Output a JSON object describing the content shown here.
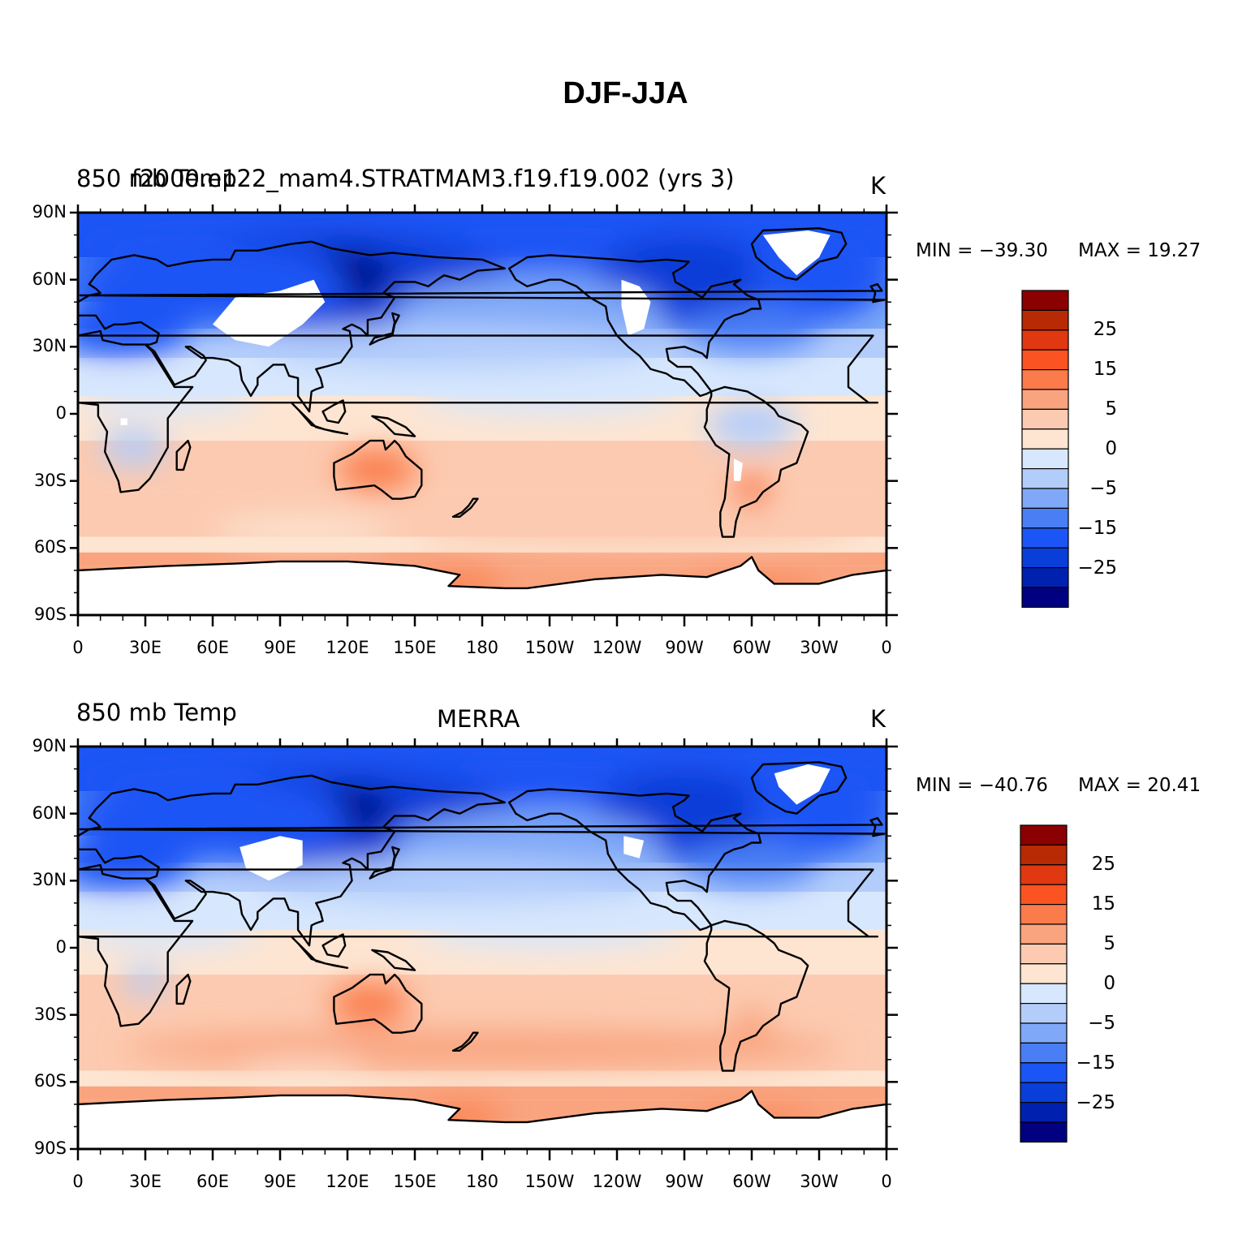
{
  "title": "DJF-JJA",
  "colors": {
    "levels": [
      "#000080",
      "#0020b0",
      "#0a3ed8",
      "#1c55f5",
      "#4a7ef5",
      "#7fa8f8",
      "#b3cdfb",
      "#d7e7fd",
      "#fde5d2",
      "#fccab0",
      "#f9a47f",
      "#fb7b4a",
      "#fb5321",
      "#e03811",
      "#b82a04",
      "#8b0000"
    ],
    "land_outline": "#000000",
    "missing": "#ffffff"
  },
  "colorbar": {
    "labels": [
      "25",
      "15",
      "5",
      "0",
      "−5",
      "−15",
      "−25"
    ]
  },
  "axes": {
    "y_ticks": [
      "90N",
      "60N",
      "30N",
      "0",
      "30S",
      "60S",
      "90S"
    ],
    "x_ticks": [
      "0",
      "30E",
      "60E",
      "90E",
      "120E",
      "150E",
      "180",
      "150W",
      "120W",
      "90W",
      "60W",
      "30W",
      "0"
    ]
  },
  "panels": [
    {
      "left_label": "850 mb Temp",
      "overlay_label": "f2000.e122_mam4.STRATMAM3.f19.f19.002 (yrs 3)",
      "center_label": "",
      "right_label": "K",
      "min_text": "MIN = −39.30",
      "max_text": "MAX =   19.27"
    },
    {
      "left_label": "850 mb Temp",
      "overlay_label": "",
      "center_label": "MERRA",
      "right_label": "K",
      "min_text": "MIN = −40.76",
      "max_text": "MAX =   20.41"
    }
  ],
  "chart_data": {
    "type": "heatmap",
    "title": "DJF-JJA",
    "variable": "850 mb Temp",
    "units": "K",
    "projection": "cylindrical equidistant, 0 to 360 longitude",
    "contour_levels": [
      -35,
      -30,
      -25,
      -20,
      -15,
      -10,
      -5,
      0,
      5,
      10,
      15,
      20,
      25,
      30,
      35
    ],
    "panels": [
      {
        "dataset": "f2000.e122_mam4.STRATMAM3.f19.f19.002 (yrs 3)",
        "min": -39.3,
        "max": 19.27
      },
      {
        "dataset": "MERRA",
        "min": -40.76,
        "max": 20.41
      }
    ]
  }
}
